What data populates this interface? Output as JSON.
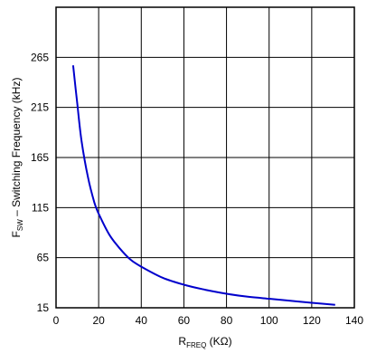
{
  "chart_data": {
    "type": "line",
    "title": "",
    "xlabel": {
      "main": "R",
      "sub": "FREQ",
      "unit": " (KΩ)"
    },
    "ylabel": {
      "main": "F",
      "sub": "SW",
      "rest": " – Switching Frequency (kHz)"
    },
    "xlim": [
      0,
      140
    ],
    "ylim": [
      15,
      315
    ],
    "x_ticks": [
      0,
      20,
      40,
      60,
      80,
      100,
      120,
      140
    ],
    "y_ticks": [
      15,
      65,
      115,
      165,
      215,
      265
    ],
    "grid": true,
    "series": [
      {
        "color": "#0000cc",
        "x": [
          8,
          10,
          12,
          15,
          18,
          20,
          25,
          30,
          35,
          40,
          50,
          60,
          70,
          80,
          90,
          100,
          110,
          120,
          131
        ],
        "y": [
          257,
          218,
          181,
          145,
          120,
          109,
          88,
          74,
          63,
          56,
          45,
          38,
          33,
          29,
          26,
          24,
          22,
          20,
          18
        ]
      }
    ]
  }
}
